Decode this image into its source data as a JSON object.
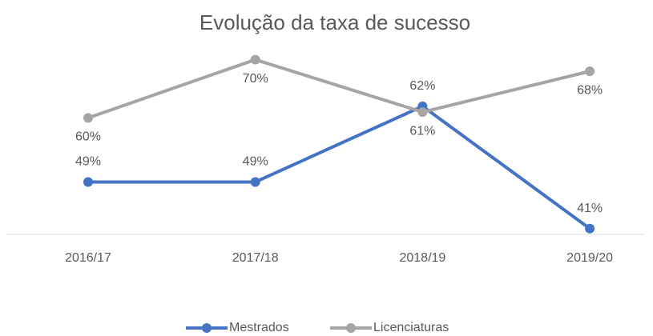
{
  "chart_data": {
    "type": "line",
    "title": "Evolução da taxa de sucesso",
    "categories": [
      "2016/17",
      "2017/18",
      "2018/19",
      "2019/20"
    ],
    "series": [
      {
        "name": "Mestrados",
        "color": "#4472c4",
        "values": [
          49,
          49,
          62,
          41
        ],
        "value_labels": [
          "49%",
          "49%",
          "62%",
          "41%"
        ]
      },
      {
        "name": "Licenciaturas",
        "color": "#a5a5a5",
        "values": [
          60,
          70,
          61,
          68
        ],
        "value_labels": [
          "60%",
          "70%",
          "61%",
          "68%"
        ]
      }
    ],
    "ylim": [
      40,
      72
    ]
  }
}
